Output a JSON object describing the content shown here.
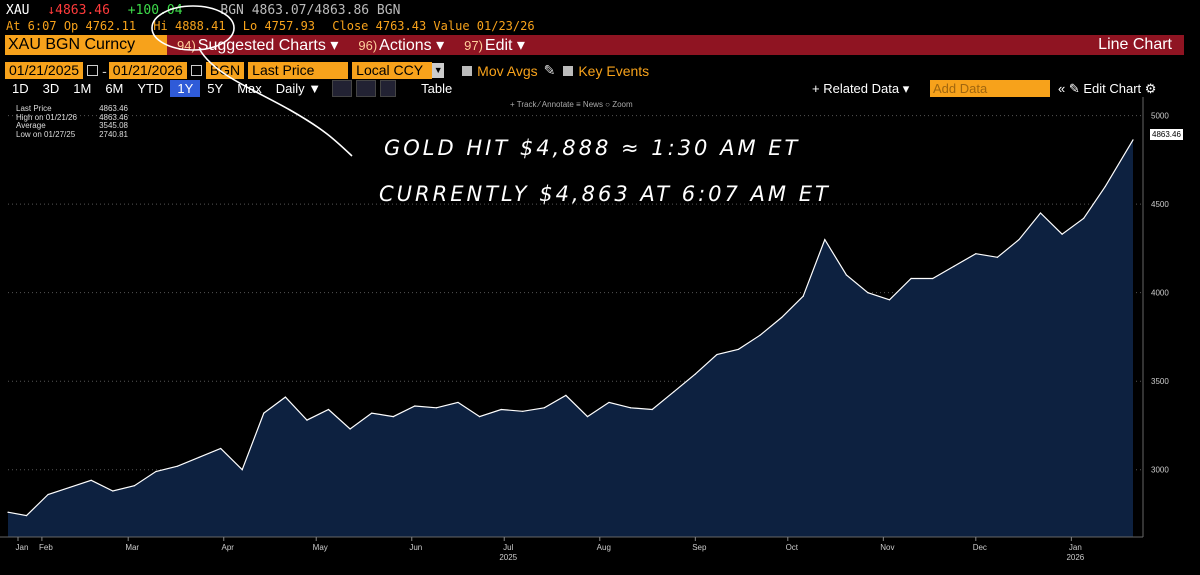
{
  "quote": {
    "ticker": "XAU",
    "last": "4863.46",
    "change": "+100.04",
    "bid_ask": "BGN 4863.07/4863.86 BGN",
    "time_label": "At 6:07",
    "open_label": "Op 4762.11",
    "high_label": "Hi 4888.41",
    "low_label": "Lo 4757.93",
    "close_label": "Close 4763.43",
    "value_label": "Value 01/23/26"
  },
  "menu": {
    "security": "XAU BGN Curncy",
    "items": [
      {
        "num": "94)",
        "label": "Suggested Charts ▾"
      },
      {
        "num": "96)",
        "label": "Actions ▾"
      },
      {
        "num": "97)",
        "label": "Edit ▾"
      }
    ],
    "chart_type": "Line Chart"
  },
  "controls": {
    "start_date": "01/21/2025",
    "end_date": "01/21/2026",
    "source": "BGN",
    "field": "Last Price",
    "currency": "Local CCY",
    "mov_avgs": "Mov Avgs",
    "key_events": "Key Events",
    "periods": [
      "1D",
      "3D",
      "1M",
      "6M",
      "YTD",
      "1Y",
      "5Y",
      "Max"
    ],
    "active_period": "1Y",
    "frequency": "Daily ▼",
    "table": "Table",
    "related": "+ Related Data ▾",
    "add_data_placeholder": "Add Data",
    "edit_chart": "« ✎ Edit Chart ⚙"
  },
  "mini_toolbar": "+ Track  ⁄ Annotate  ≡ News  ○ Zoom",
  "legend": [
    {
      "label": "Last Price",
      "value": "4863.46"
    },
    {
      "label": "High on 01/21/26",
      "value": "4863.46"
    },
    {
      "label": "Average",
      "value": "3545.08"
    },
    {
      "label": "Low on 01/27/25",
      "value": "2740.81"
    }
  ],
  "annotation": {
    "line1": "GOLD HIT $4,888 ≈ 1:30 AM ET",
    "line2": "CURRENTLY $4,863 AT 6:07 AM ET"
  },
  "colors": {
    "area_fill": "#0d2140",
    "line": "#ffffff",
    "accent": "#f7a21b",
    "menu_bar": "#8f1422"
  },
  "chart_data": {
    "type": "area",
    "title": "",
    "xlabel": "",
    "ylabel": "",
    "ylim": [
      2620,
      5060
    ],
    "y_ticks": [
      3000,
      3500,
      4000,
      4500,
      5000
    ],
    "x_ticks": [
      "Jan",
      "Feb",
      "Mar",
      "Apr",
      "May",
      "Jun",
      "Jul",
      "Aug",
      "Sep",
      "Oct",
      "Nov",
      "Dec",
      "Jan"
    ],
    "x_year_labels": [
      {
        "label": "2025",
        "month": "Jul"
      },
      {
        "label": "2026",
        "month": "Jan"
      }
    ],
    "last_value_tag": "4863.46",
    "series": [
      {
        "x": [
          "2025-01-21",
          "2025-01-27",
          "2025-02-03",
          "2025-02-10",
          "2025-02-17",
          "2025-02-24",
          "2025-03-03",
          "2025-03-10",
          "2025-03-17",
          "2025-03-24",
          "2025-03-31",
          "2025-04-07",
          "2025-04-14",
          "2025-04-21",
          "2025-04-28",
          "2025-05-05",
          "2025-05-12",
          "2025-05-19",
          "2025-05-26",
          "2025-06-02",
          "2025-06-09",
          "2025-06-16",
          "2025-06-23",
          "2025-06-30",
          "2025-07-07",
          "2025-07-14",
          "2025-07-21",
          "2025-07-28",
          "2025-08-04",
          "2025-08-11",
          "2025-08-18",
          "2025-08-25",
          "2025-09-01",
          "2025-09-08",
          "2025-09-15",
          "2025-09-22",
          "2025-09-29",
          "2025-10-06",
          "2025-10-13",
          "2025-10-20",
          "2025-10-27",
          "2025-11-03",
          "2025-11-10",
          "2025-11-17",
          "2025-11-24",
          "2025-12-01",
          "2025-12-08",
          "2025-12-15",
          "2025-12-22",
          "2025-12-29",
          "2026-01-05",
          "2026-01-12",
          "2026-01-21"
        ],
        "y": [
          2760,
          2741,
          2860,
          2900,
          2940,
          2880,
          2910,
          2990,
          3020,
          3070,
          3120,
          3000,
          3320,
          3410,
          3280,
          3340,
          3230,
          3320,
          3300,
          3360,
          3350,
          3380,
          3300,
          3340,
          3330,
          3350,
          3420,
          3300,
          3380,
          3350,
          3340,
          3440,
          3540,
          3650,
          3680,
          3760,
          3860,
          3980,
          4300,
          4100,
          4000,
          3960,
          4080,
          4080,
          4150,
          4220,
          4200,
          4300,
          4450,
          4330,
          4420,
          4600,
          4863
        ]
      }
    ]
  }
}
